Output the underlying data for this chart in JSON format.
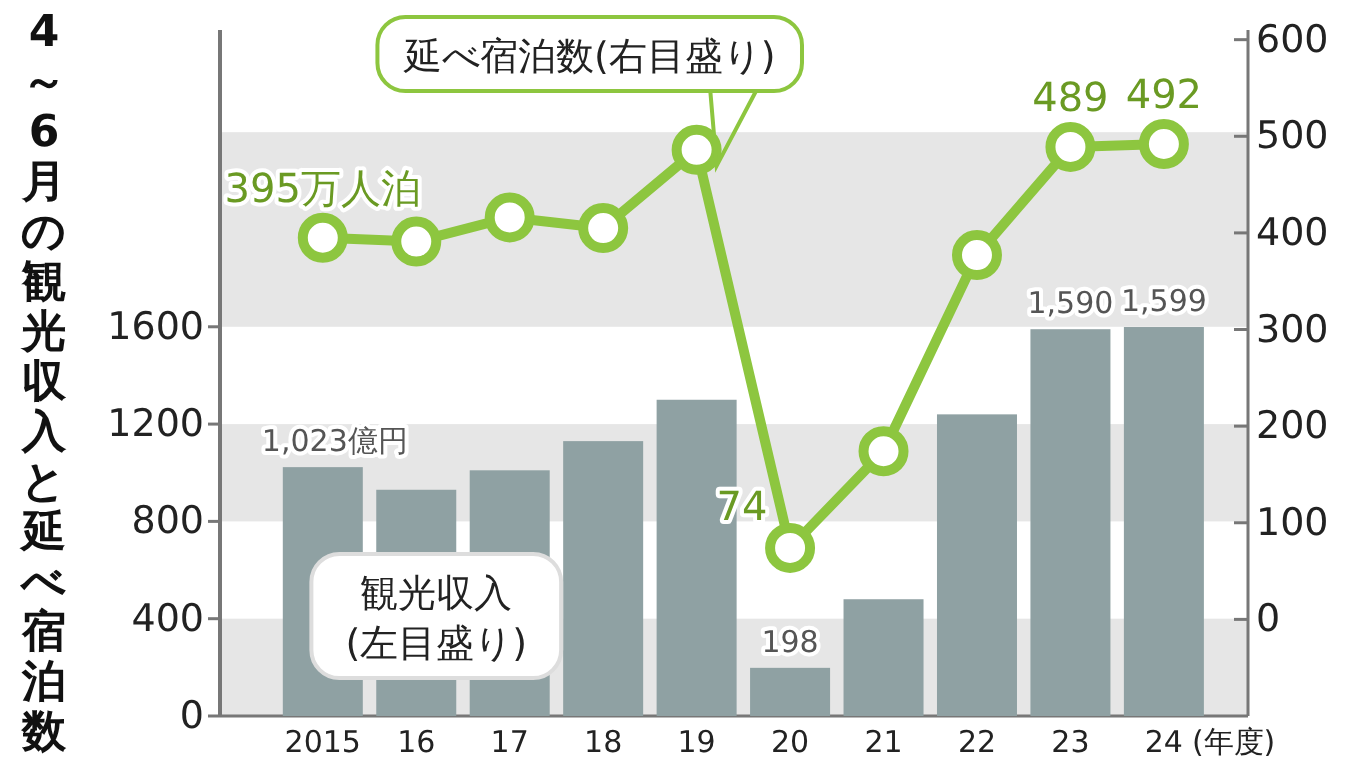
{
  "chart_data": {
    "type": "bar",
    "title": "4～6月の観光収入と延べ宿泊数",
    "xlabel": "(年度)",
    "categories": [
      "2015",
      "16",
      "17",
      "18",
      "19",
      "20",
      "21",
      "22",
      "23",
      "24"
    ],
    "ylim": [
      0,
      2820
    ],
    "yticks": [
      0,
      400,
      800,
      1200,
      1600
    ],
    "y2lim": [
      -100,
      610
    ],
    "y2ticks": [
      0,
      100,
      200,
      300,
      400,
      500,
      600
    ],
    "bands": [
      {
        "axis": "y",
        "from": 0,
        "to": 400,
        "color": "#e6e6e6"
      },
      {
        "axis": "y",
        "from": 800,
        "to": 1200,
        "color": "#e6e6e6"
      },
      {
        "axis": "y",
        "from": 1600,
        "to": 2400,
        "color": "#e6e6e6"
      }
    ],
    "series": [
      {
        "name": "観光収入(左目盛り)",
        "color": "#8fa1a3",
        "values": [
          1023,
          930,
          1010,
          1130,
          1300,
          198,
          480,
          1240,
          1590,
          1599
        ],
        "value_labels": [
          "1,023億円",
          null,
          null,
          null,
          null,
          "198",
          null,
          null,
          "1,590",
          "1,599"
        ]
      },
      {
        "name": "延べ宿泊数(右目盛り)",
        "type": "line",
        "axis": "y2",
        "color": "#8dc63f",
        "marker": "circle",
        "values": [
          395,
          391,
          416,
          405,
          486,
          74,
          174,
          377,
          489,
          492
        ],
        "value_labels": [
          "395万人泊",
          null,
          null,
          null,
          null,
          "74",
          null,
          null,
          "489",
          "492"
        ]
      }
    ]
  }
}
